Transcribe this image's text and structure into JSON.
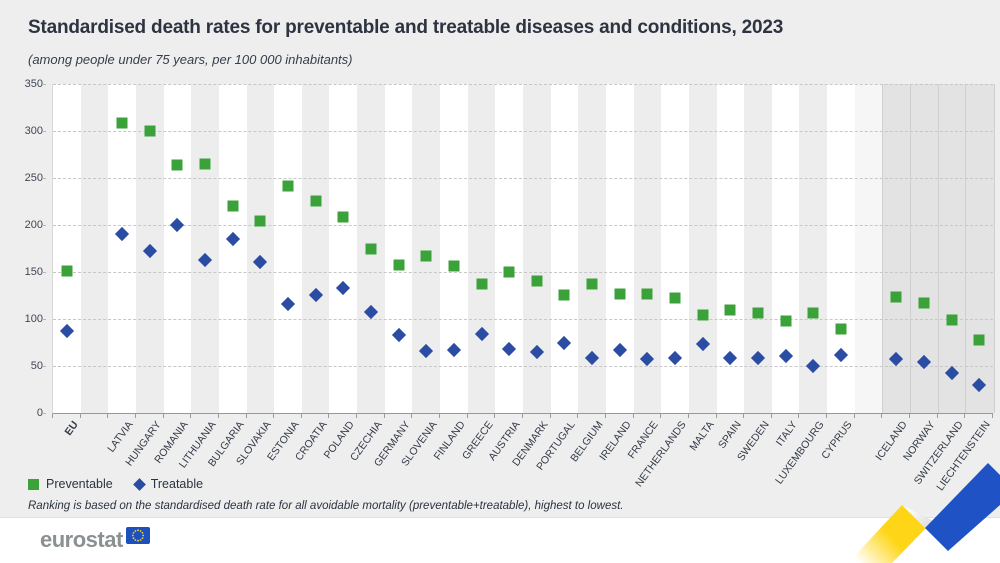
{
  "header": {
    "title": "Standardised death rates for preventable and treatable diseases and conditions, 2023",
    "subtitle": "(among people under 75 years, per 100 000 inhabitants)"
  },
  "legend": {
    "preventable_label": "Preventable",
    "treatable_label": "Treatable"
  },
  "footnote": "Ranking is based on the standardised death rate for all avoidable mortality (preventable+treatable), highest to lowest.",
  "footer": {
    "logo_text": "eurostat"
  },
  "colors": {
    "preventable": "#3ba23a",
    "treatable": "#2b4ca3",
    "ribbon_yellow": "#ffd617",
    "ribbon_blue": "#1f53c5",
    "flag_blue": "#1d4fbe",
    "flag_stars": "#ffd617"
  },
  "chart_data": {
    "type": "scatter",
    "title": "Standardised death rates for preventable and treatable diseases and conditions, 2023",
    "xlabel": "",
    "ylabel": "per 100 000 inhabitants",
    "ylim": [
      0,
      350
    ],
    "yticks": [
      0,
      50,
      100,
      150,
      200,
      250,
      300,
      350
    ],
    "grid": true,
    "legend_position": "bottom-left",
    "categories": [
      "EU",
      "LATVIA",
      "HUNGARY",
      "ROMANIA",
      "LITHUANIA",
      "BULGARIA",
      "SLOVAKIA",
      "ESTONIA",
      "CROATIA",
      "POLAND",
      "CZECHIA",
      "GERMANY",
      "SLOVENIA",
      "FINLAND",
      "GREECE",
      "AUSTRIA",
      "DENMARK",
      "PORTUGAL",
      "BELGIUM",
      "IRELAND",
      "FRANCE",
      "NETHERLANDS",
      "MALTA",
      "SPAIN",
      "SWEDEN",
      "ITALY",
      "LUXEMBOURG",
      "CYPRUS",
      "ICELAND",
      "NORWAY",
      "SWITZERLAND",
      "LIECHTENSTEIN"
    ],
    "series": [
      {
        "name": "Preventable",
        "marker": "square",
        "values": [
          151,
          309,
          300,
          264,
          265,
          220,
          204,
          242,
          226,
          209,
          175,
          157,
          167,
          156,
          137,
          150,
          140,
          126,
          137,
          127,
          127,
          122,
          104,
          110,
          106,
          98,
          106,
          89,
          123,
          117,
          99,
          78
        ]
      },
      {
        "name": "Treatable",
        "marker": "diamond",
        "values": [
          87,
          190,
          172,
          200,
          163,
          185,
          161,
          116,
          126,
          133,
          107,
          83,
          66,
          67,
          84,
          68,
          65,
          74,
          58,
          67,
          57,
          59,
          73,
          58,
          58,
          61,
          50,
          62,
          57,
          54,
          43,
          30
        ]
      }
    ],
    "separator_after_indices": [
      0,
      27
    ],
    "efta_from_index": 28,
    "bold_category_index": 0,
    "band_colors": {
      "eu_even": "#ffffff",
      "eu_odd": "#ededed",
      "gaps": [
        "#ededed",
        "#f6f6f6"
      ],
      "efta": "#e3e3e3"
    }
  }
}
